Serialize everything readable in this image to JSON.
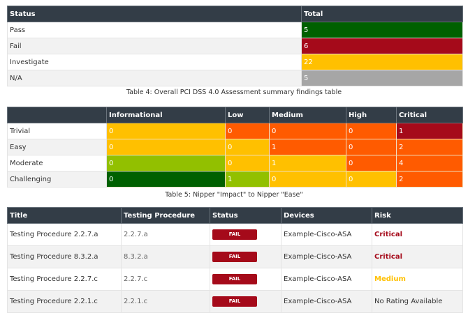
{
  "colors": {
    "header": "#333d47",
    "pass": "#006000",
    "fail": "#a50a1a",
    "investigate": "#ffc000",
    "na": "#a6a6a6",
    "orange": "#ff5b00",
    "lightgreen": "#92c000",
    "critical_text": "#a50a1a",
    "medium_text": "#ffc000"
  },
  "summary": {
    "headers": [
      "Status",
      "Total"
    ],
    "rows": [
      {
        "status": "Pass",
        "total": "5",
        "color": "#006000"
      },
      {
        "status": "Fail",
        "total": "6",
        "color": "#a50a1a"
      },
      {
        "status": "Investigate",
        "total": "22",
        "color": "#ffc000"
      },
      {
        "status": "N/A",
        "total": "5",
        "color": "#a6a6a6"
      }
    ]
  },
  "caption4": "Table 4: Overall PCI DSS 4.0 Assessment summary findings table",
  "matrix": {
    "headers": [
      "",
      "Informational",
      "Low",
      "Medium",
      "High",
      "Critical"
    ],
    "rows": [
      {
        "label": "Trivial",
        "cells": [
          {
            "v": "0",
            "c": "#ffc000"
          },
          {
            "v": "0",
            "c": "#ff5b00"
          },
          {
            "v": "0",
            "c": "#ff5b00"
          },
          {
            "v": "0",
            "c": "#ff5b00"
          },
          {
            "v": "1",
            "c": "#a50a1a"
          }
        ]
      },
      {
        "label": "Easy",
        "cells": [
          {
            "v": "0",
            "c": "#ffc000"
          },
          {
            "v": "0",
            "c": "#ffc000"
          },
          {
            "v": "1",
            "c": "#ff5b00"
          },
          {
            "v": "0",
            "c": "#ff5b00"
          },
          {
            "v": "2",
            "c": "#ff5b00"
          }
        ]
      },
      {
        "label": "Moderate",
        "cells": [
          {
            "v": "0",
            "c": "#92c000"
          },
          {
            "v": "0",
            "c": "#ffc000"
          },
          {
            "v": "1",
            "c": "#ffc000"
          },
          {
            "v": "0",
            "c": "#ff5b00"
          },
          {
            "v": "4",
            "c": "#ff5b00"
          }
        ]
      },
      {
        "label": "Challenging",
        "cells": [
          {
            "v": "0",
            "c": "#006000"
          },
          {
            "v": "1",
            "c": "#92c000"
          },
          {
            "v": "0",
            "c": "#ffc000"
          },
          {
            "v": "0",
            "c": "#ffc000"
          },
          {
            "v": "2",
            "c": "#ff5b00"
          }
        ]
      }
    ]
  },
  "caption5": "Table 5: Nipper \"Impact\" to Nipper \"Ease\"",
  "findings": {
    "headers": [
      "Title",
      "Testing Procedure",
      "Status",
      "Devices",
      "Risk"
    ],
    "rows": [
      {
        "title": "Testing Procedure 2.2.7.a",
        "procedure": "2.2.7.a",
        "status": "FAIL",
        "device": "Example-Cisco-ASA",
        "risk": "Critical",
        "risk_color": "#a50a1a"
      },
      {
        "title": "Testing Procedure 8.3.2.a",
        "procedure": "8.3.2.a",
        "status": "FAIL",
        "device": "Example-Cisco-ASA",
        "risk": "Critical",
        "risk_color": "#a50a1a"
      },
      {
        "title": "Testing Procedure 2.2.7.c",
        "procedure": "2.2.7.c",
        "status": "FAIL",
        "device": "Example-Cisco-ASA",
        "risk": "Medium",
        "risk_color": "#ffc000"
      },
      {
        "title": "Testing Procedure 2.2.1.c",
        "procedure": "2.2.1.c",
        "status": "FAIL",
        "device": "Example-Cisco-ASA",
        "risk": "No Rating Available",
        "risk_color": ""
      }
    ]
  }
}
